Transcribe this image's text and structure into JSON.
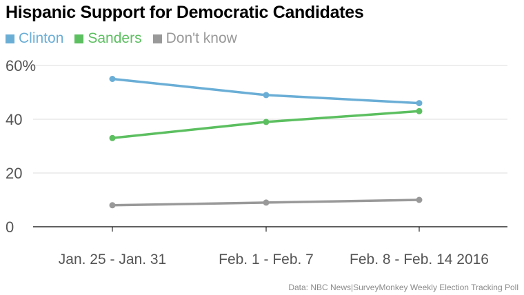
{
  "chart_data": {
    "type": "line",
    "title": "Hispanic Support for Democratic Candidates",
    "categories": [
      "Jan. 25 - Jan. 31",
      "Feb. 1 - Feb. 7",
      "Feb. 8 - Feb. 14 2016"
    ],
    "series": [
      {
        "name": "Clinton",
        "values": [
          55,
          49,
          46
        ],
        "color": "#6aaed6"
      },
      {
        "name": "Sanders",
        "values": [
          33,
          39,
          43
        ],
        "color": "#5cbf60"
      },
      {
        "name": "Don't know",
        "values": [
          8,
          9,
          10
        ],
        "color": "#999999"
      }
    ],
    "yticks": [
      "0",
      "20",
      "40",
      "60%"
    ],
    "ytick_values": [
      0,
      20,
      40,
      60
    ],
    "ylim": [
      0,
      60
    ],
    "grid": true,
    "legend_position": "top-left",
    "source": "Data: NBC News|SurveyMonkey Weekly Election Tracking Poll"
  }
}
